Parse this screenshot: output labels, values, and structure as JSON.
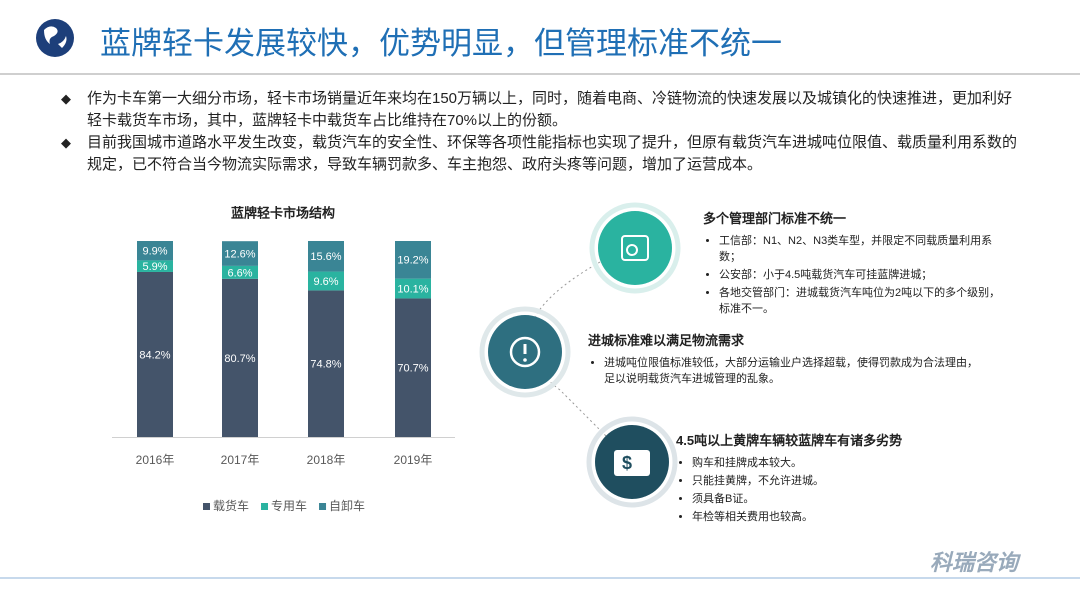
{
  "header": {
    "title": "蓝牌轻卡发展较快，优势明显，但管理标准不统一"
  },
  "bullets": [
    "作为卡车第一大细分市场，轻卡市场销量近年来均在150万辆以上，同时，随着电商、冷链物流的快速发展以及城镇化的快速推进，更加利好轻卡载货车市场，其中，蓝牌轻卡中载货车占比维持在70%以上的份额。",
    "目前我国城市道路水平发生改变，载货汽车的安全性、环保等各项性能指标也实现了提升，但原有载货汽车进城吨位限值、载质量利用系数的规定，已不符合当今物流实际需求，导致车辆罚款多、车主抱怨、政府头疼等问题，增加了运营成本。"
  ],
  "chart_data": {
    "type": "stacked_bar",
    "title": "蓝牌轻卡市场结构",
    "categories": [
      "2016年",
      "2017年",
      "2018年",
      "2019年"
    ],
    "ylim": [
      0,
      100
    ],
    "series": [
      {
        "name": "载货车",
        "color": "#44546a",
        "values": [
          84.2,
          80.7,
          74.8,
          70.7
        ],
        "value_labels": [
          "84.2%",
          "80.7%",
          "74.8%",
          "70.7%"
        ]
      },
      {
        "name": "专用车",
        "color": "#2ab3a0",
        "values": [
          5.9,
          6.6,
          9.6,
          10.1
        ],
        "value_labels": [
          "5.9%",
          "6.6%",
          "9.6%",
          "10.1%"
        ]
      },
      {
        "name": "自卸车",
        "color": "#3a8595",
        "values": [
          9.9,
          12.6,
          15.6,
          19.2
        ],
        "value_labels": [
          "9.9%",
          "12.6%",
          "15.6%",
          "19.2%"
        ]
      }
    ]
  },
  "panels": [
    {
      "title": "多个管理部门标准不统一",
      "items": [
        "工信部：N1、N2、N3类车型，并限定不同载质量利用系数；",
        "公安部：小于4.5吨载货汽车可挂蓝牌进城；",
        "各地交管部门：进城载货汽车吨位为2吨以下的多个级别，标准不一。"
      ]
    },
    {
      "title": "进城标准难以满足物流需求",
      "items": [
        "进城吨位限值标准较低，大部分运输业户选择超载，使得罚款成为合法理由，足以说明载货汽车进城管理的乱象。"
      ]
    },
    {
      "title": "4.5吨以上黄牌车辆较蓝牌车有诸多劣势",
      "items": [
        "购车和挂牌成本较大。",
        "只能挂黄牌，不允许进城。",
        "须具备B证。",
        "年检等相关费用也较高。"
      ]
    }
  ],
  "watermark": "科瑞咨询"
}
